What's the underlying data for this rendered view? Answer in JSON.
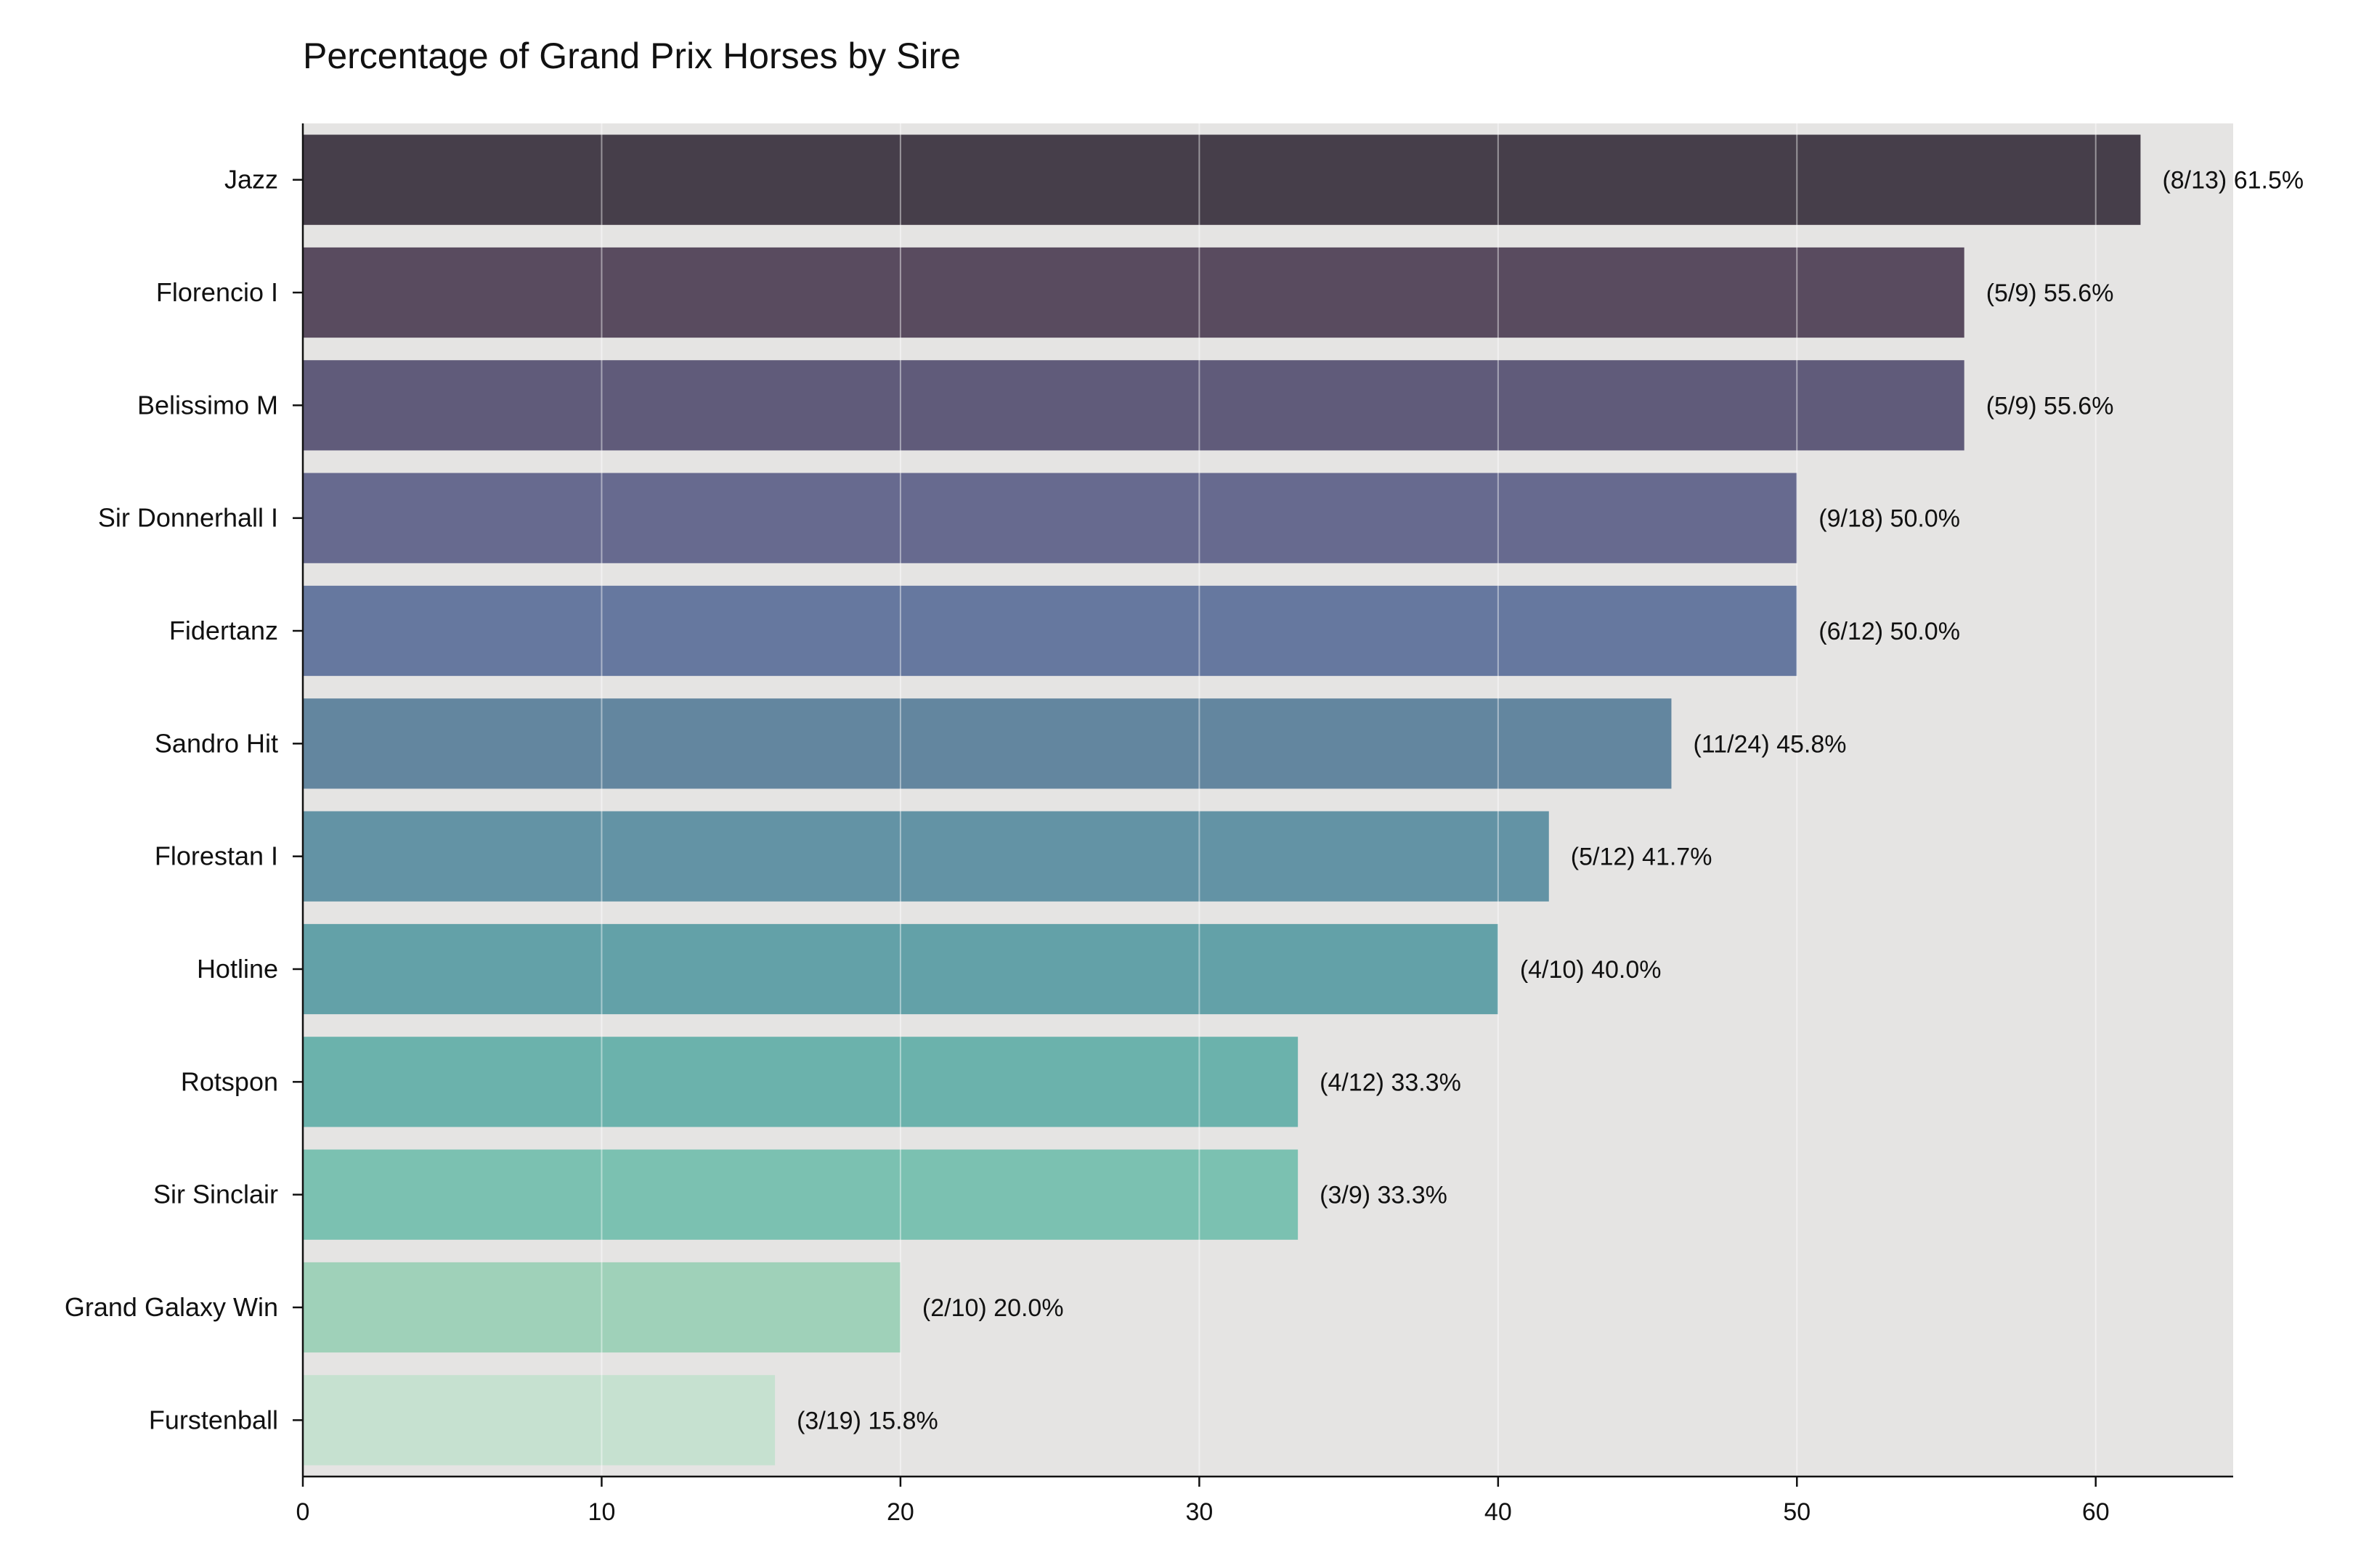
{
  "chart_data": {
    "type": "bar",
    "orientation": "horizontal",
    "title": "Percentage of Grand Prix Horses by Sire",
    "xlabel": "",
    "ylabel": "",
    "xlim": [
      0,
      64.6
    ],
    "xticks": [
      0,
      10,
      20,
      30,
      40,
      50,
      60
    ],
    "grid": true,
    "categories": [
      "Jazz",
      "Florencio I",
      "Belissimo M",
      "Sir Donnerhall I",
      "Fidertanz",
      "Sandro Hit",
      "Florestan I",
      "Hotline",
      "Rotspon",
      "Sir Sinclair",
      "Grand Galaxy Win",
      "Furstenball"
    ],
    "values": [
      61.5,
      55.6,
      55.6,
      50.0,
      50.0,
      45.8,
      41.7,
      40.0,
      33.3,
      33.3,
      20.0,
      15.8
    ],
    "labels": [
      "(8/13) 61.5%",
      "(5/9) 55.6%",
      "(5/9) 55.6%",
      "(9/18) 50.0%",
      "(6/12) 50.0%",
      "(11/24) 45.8%",
      "(5/12) 41.7%",
      "(4/10) 40.0%",
      "(4/12) 33.3%",
      "(3/9) 33.3%",
      "(2/10) 20.0%",
      "(3/19) 15.8%"
    ],
    "colors": [
      "#463e4a",
      "#594b5f",
      "#605b7a",
      "#676a8f",
      "#66789f",
      "#63869f",
      "#6393a5",
      "#63a1a8",
      "#6bb2ac",
      "#7bc1b1",
      "#9fd1b9",
      "#c6e1d0"
    ],
    "background": "#e5e4e3"
  }
}
